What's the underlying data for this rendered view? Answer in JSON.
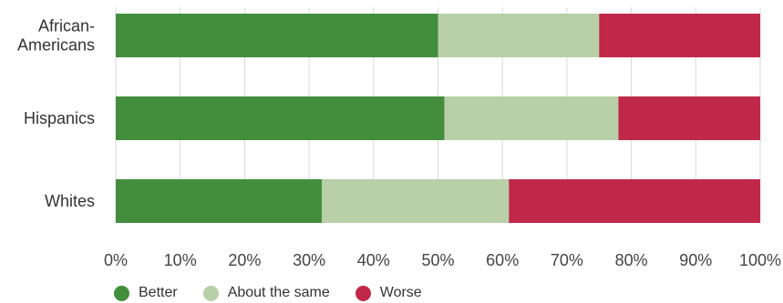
{
  "chart_data": {
    "type": "bar",
    "orientation": "horizontal",
    "stacked": true,
    "categories": [
      "African-Americans",
      "Hispanics",
      "Whites"
    ],
    "category_label_lines": [
      [
        "African-",
        "Americans"
      ],
      [
        "Hispanics"
      ],
      [
        "Whites"
      ]
    ],
    "series": [
      {
        "name": "Better",
        "color": "#438E3D",
        "values": [
          50,
          51,
          32
        ]
      },
      {
        "name": "About the same",
        "color": "#B8CFA8",
        "values": [
          25,
          27,
          29
        ]
      },
      {
        "name": "Worse",
        "color": "#C0284A",
        "values": [
          25,
          22,
          39
        ]
      }
    ],
    "xlim": [
      0,
      100
    ],
    "x_ticks": [
      "0%",
      "10%",
      "20%",
      "30%",
      "40%",
      "50%",
      "60%",
      "70%",
      "80%",
      "90%",
      "100%"
    ],
    "grid": "vertical",
    "legend": "bottom",
    "title": "",
    "xlabel": "",
    "ylabel": ""
  }
}
